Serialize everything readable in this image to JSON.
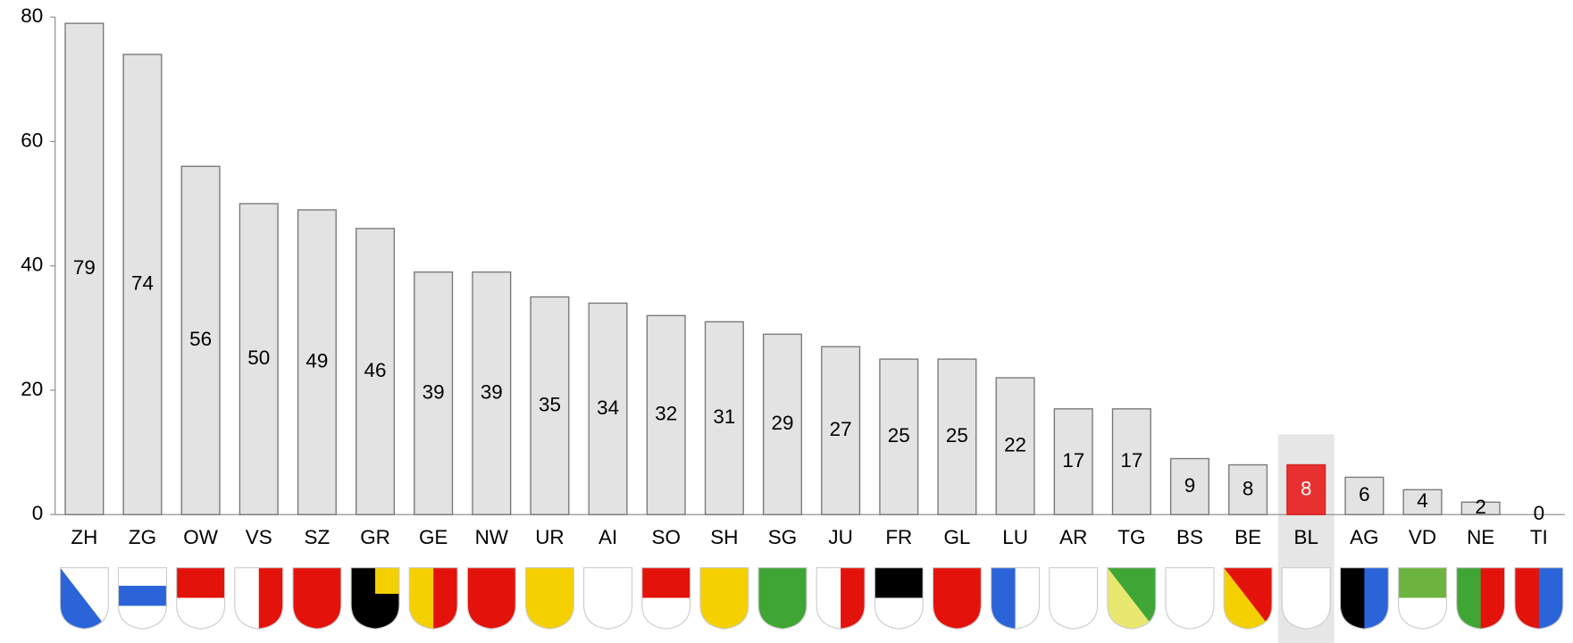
{
  "chart_data": {
    "type": "bar",
    "categories": [
      "ZH",
      "ZG",
      "OW",
      "VS",
      "SZ",
      "GR",
      "GE",
      "NW",
      "UR",
      "AI",
      "SO",
      "SH",
      "SG",
      "JU",
      "FR",
      "GL",
      "LU",
      "AR",
      "TG",
      "BS",
      "BE",
      "BL",
      "AG",
      "VD",
      "NE",
      "TI"
    ],
    "values": [
      79,
      74,
      56,
      50,
      49,
      46,
      39,
      39,
      35,
      34,
      32,
      31,
      29,
      27,
      25,
      25,
      22,
      17,
      17,
      9,
      8,
      8,
      6,
      4,
      2,
      0
    ],
    "color": "#e3e3e3",
    "highlight": "BL",
    "highlight_color": "#e8312f",
    "ylim": [
      0,
      80
    ],
    "yticks": [
      0,
      20,
      40,
      60,
      80
    ]
  }
}
